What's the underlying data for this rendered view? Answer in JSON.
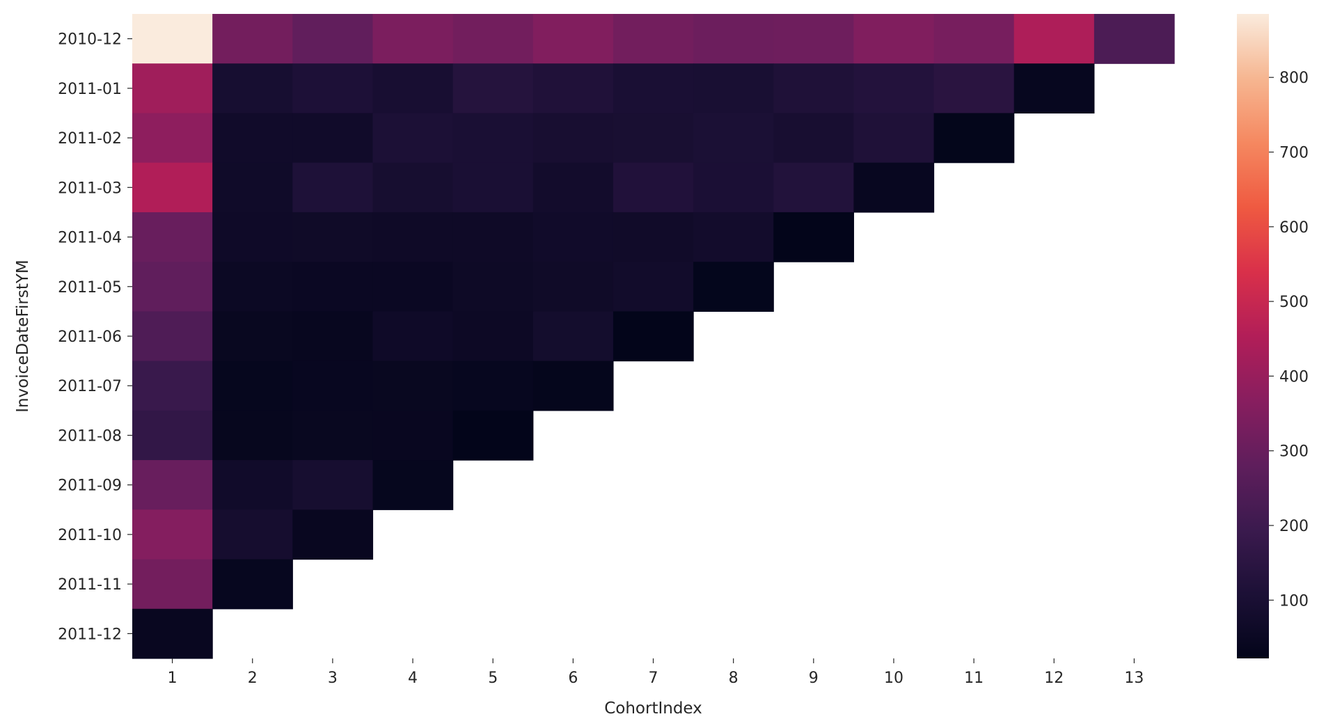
{
  "chart_data": {
    "type": "heatmap",
    "title": "",
    "xlabel": "CohortIndex",
    "ylabel": "InvoiceDateFirstYM",
    "x_categories": [
      "1",
      "2",
      "3",
      "4",
      "5",
      "6",
      "7",
      "8",
      "9",
      "10",
      "11",
      "12",
      "13"
    ],
    "y_categories": [
      "2010-12",
      "2011-01",
      "2011-02",
      "2011-03",
      "2011-04",
      "2011-05",
      "2011-06",
      "2011-07",
      "2011-08",
      "2011-09",
      "2011-10",
      "2011-11",
      "2011-12"
    ],
    "values": [
      [
        885,
        324,
        286,
        340,
        321,
        352,
        321,
        309,
        313,
        350,
        331,
        445,
        235
      ],
      [
        417,
        92,
        111,
        96,
        134,
        120,
        101,
        99,
        117,
        129,
        146,
        37
      ],
      [
        380,
        71,
        71,
        108,
        102,
        94,
        97,
        106,
        94,
        116,
        26
      ],
      [
        452,
        68,
        114,
        90,
        101,
        76,
        121,
        104,
        126,
        39
      ],
      [
        300,
        64,
        66,
        63,
        62,
        71,
        69,
        78,
        22
      ],
      [
        284,
        54,
        49,
        49,
        59,
        66,
        75,
        27
      ],
      [
        242,
        42,
        38,
        64,
        56,
        81,
        23
      ],
      [
        188,
        34,
        39,
        42,
        36,
        29
      ],
      [
        169,
        35,
        42,
        41,
        23
      ],
      [
        299,
        70,
        90,
        34
      ],
      [
        358,
        86,
        41
      ],
      [
        323,
        36
      ],
      [
        41
      ]
    ],
    "colorbar": {
      "colormap": "rocket",
      "vmin": 22,
      "vmax": 885,
      "ticks": [
        100,
        200,
        300,
        400,
        500,
        600,
        700,
        800
      ]
    },
    "grid": false,
    "legend": "colorbar-right"
  }
}
